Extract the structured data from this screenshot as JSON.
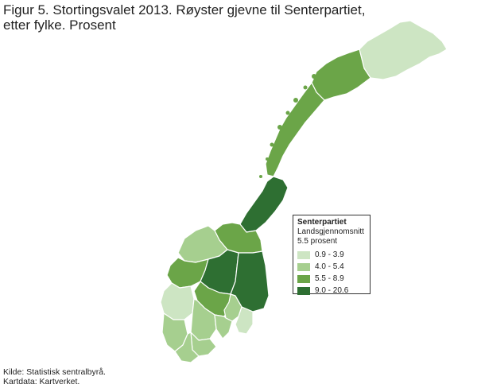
{
  "title_line1": "Figur 5. Stortingsvalet 2013. Røyster gjevne til Senterpartiet,",
  "title_line2": "etter fylke. Prosent",
  "legend": {
    "heading": "Senterpartiet",
    "subheading": "Landsgjennomsnitt",
    "average": "5.5 prosent",
    "classes": [
      {
        "label": "0.9 - 3.9",
        "color": "#cde5c3"
      },
      {
        "label": "4.0 - 5.4",
        "color": "#a6cf8f"
      },
      {
        "label": "5.5 - 8.9",
        "color": "#6ba548"
      },
      {
        "label": "9.0 - 20.6",
        "color": "#2e6f32"
      }
    ]
  },
  "source_line1": "Kilde: Statistisk sentralbyrå.",
  "source_line2": "Kartdata: Kartverket."
}
